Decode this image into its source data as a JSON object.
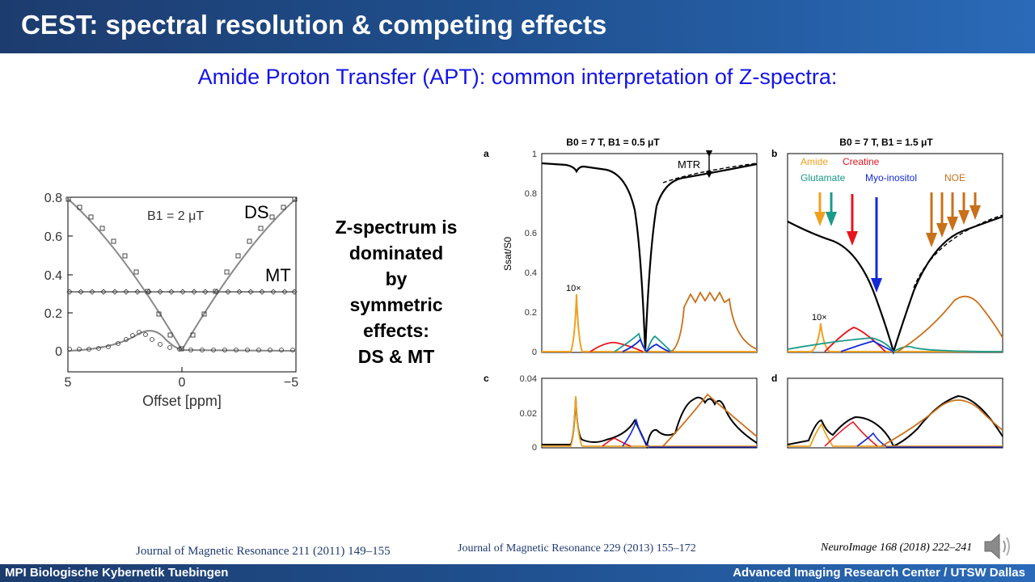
{
  "slide": {
    "title": "CEST: spectral resolution & competing effects",
    "subtitle": "Amide Proton Transfer (APT): common interpretation of Z-spectra:",
    "center_text": [
      "Z-spectrum is",
      "dominated",
      "by",
      "symmetric",
      "effects:",
      "DS & MT"
    ]
  },
  "references": {
    "left": "Journal of Magnetic Resonance 211 (2011) 149–155",
    "middle": "Journal of Magnetic Resonance 229 (2013) 155–172",
    "right": "NeuroImage 168 (2018) 222–241"
  },
  "footer": {
    "left": "MPI Biologische Kybernetik Tuebingen",
    "right": "Advanced Imaging Research Center / UTSW Dallas"
  },
  "icons": {
    "speaker": "speaker-icon"
  },
  "colors": {
    "amide": "#f0a020",
    "creatine": "#e8141e",
    "glutamate": "#1a9a8a",
    "myo_inositol": "#1428d8",
    "noe": "#c8701a",
    "title_blue": "#1414e6"
  },
  "chart_data": [
    {
      "type": "scatter",
      "title": "",
      "annotation": "B1 = 2 μT",
      "xlabel": "Offset [ppm]",
      "ylabel": "",
      "xlim": [
        5,
        -5
      ],
      "ylim": [
        0,
        0.8
      ],
      "xticks": [
        "5",
        "0",
        "−5"
      ],
      "yticks": [
        "0",
        "0.2",
        "0.4",
        "0.6",
        "0.8"
      ],
      "series": [
        {
          "name": "DS",
          "x": [
            5,
            4,
            3,
            2,
            1,
            0,
            -1,
            -2,
            -3,
            -4,
            -5
          ],
          "y": [
            0.78,
            0.64,
            0.47,
            0.31,
            0.12,
            0.0,
            0.12,
            0.31,
            0.47,
            0.64,
            0.78
          ]
        },
        {
          "name": "MT",
          "x": [
            5,
            3,
            1,
            0,
            -1,
            -3,
            -5
          ],
          "y": [
            0.3,
            0.3,
            0.3,
            0.3,
            0.3,
            0.3,
            0.3
          ]
        },
        {
          "name": "",
          "x": [
            5,
            4,
            3,
            2,
            1,
            0,
            -1,
            -3,
            -5
          ],
          "y": [
            0.0,
            0.01,
            0.04,
            0.1,
            0.05,
            0.01,
            0.0,
            0.0,
            0.0
          ]
        }
      ]
    },
    {
      "type": "line",
      "panel": "a",
      "title": "B0 = 7 T, B1 = 0.5 μT",
      "ylabel": "Ssat/S0",
      "ylim": [
        0,
        1
      ],
      "yticks": [
        "0",
        "0.2",
        "0.4",
        "0.6",
        "0.8",
        "1"
      ],
      "annotations": [
        "MTR",
        "10×"
      ]
    },
    {
      "type": "line",
      "panel": "b",
      "title": "B0 = 7 T, B1 = 1.5 μT",
      "ylim": [
        0,
        1
      ],
      "legend": [
        "Amide",
        "Creatine",
        "Glutamate",
        "Myo-inositol",
        "NOE"
      ],
      "annotations": [
        "10×"
      ]
    },
    {
      "type": "line",
      "panel": "c",
      "ylim": [
        0,
        0.04
      ],
      "yticks": [
        "0",
        "0.02",
        "0.04"
      ]
    },
    {
      "type": "line",
      "panel": "d",
      "ylim": [
        0,
        0.04
      ]
    }
  ]
}
